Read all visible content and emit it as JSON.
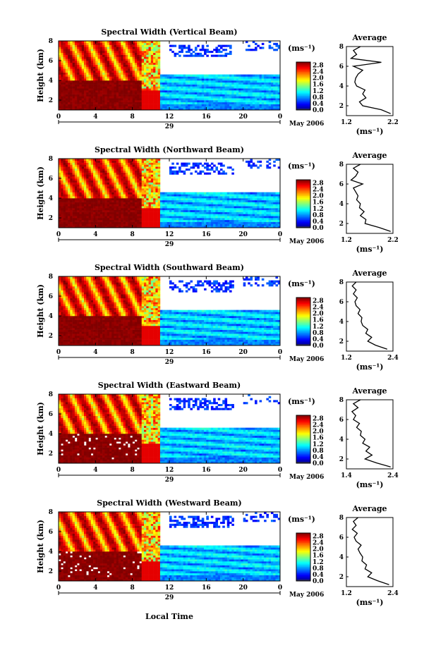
{
  "figure": {
    "x_axis_label": "Local Time",
    "colorbar_unit": "(ms⁻¹)",
    "date_label": "May 2006",
    "day_label": "29"
  },
  "chart_data": [
    {
      "type": "heatmap",
      "title": "Spectral Width (Vertical Beam)",
      "ylabel": "Height (km)",
      "xlabel": "",
      "x_ticks": [
        "0",
        "4",
        "8",
        "12",
        "16",
        "20",
        "0"
      ],
      "y_ticks": [
        "2",
        "4",
        "6",
        "8"
      ],
      "xlim": [
        0,
        24
      ],
      "ylim": [
        1,
        8
      ],
      "colorbar_ticks": [
        "0.0",
        "0.4",
        "0.8",
        "1.2",
        "1.6",
        "2.0",
        "2.4",
        "2.8"
      ],
      "colorbar_range": [
        0,
        3.0
      ],
      "profile": {
        "title": "Average",
        "xlabel": "(ms⁻¹)",
        "x_ticks": [
          "1.2",
          "2.2"
        ],
        "xlim": [
          1.2,
          2.2
        ],
        "y_ticks": [
          "2",
          "4",
          "6",
          "8"
        ],
        "ylim": [
          1,
          8
        ],
        "heights": [
          1.2,
          1.6,
          2.0,
          2.4,
          2.8,
          3.2,
          3.6,
          4.0,
          4.4,
          4.8,
          5.2,
          5.6,
          6.0,
          6.4,
          6.8,
          7.2,
          7.6,
          8.0
        ],
        "values": [
          2.15,
          1.95,
          1.55,
          1.48,
          1.62,
          1.55,
          1.6,
          1.42,
          1.38,
          1.4,
          1.45,
          1.55,
          1.35,
          1.95,
          1.3,
          1.42,
          1.35,
          1.5
        ]
      }
    },
    {
      "type": "heatmap",
      "title": "Spectral Width (Northward Beam)",
      "ylabel": "Height (km)",
      "xlabel": "",
      "x_ticks": [
        "0",
        "4",
        "8",
        "12",
        "16",
        "20",
        "0"
      ],
      "y_ticks": [
        "2",
        "4",
        "6",
        "8"
      ],
      "xlim": [
        0,
        24
      ],
      "ylim": [
        1,
        8
      ],
      "colorbar_ticks": [
        "0.0",
        "0.4",
        "0.8",
        "1.2",
        "1.6",
        "2.0",
        "2.4",
        "2.8"
      ],
      "colorbar_range": [
        0,
        3.0
      ],
      "profile": {
        "title": "Average",
        "xlabel": "(ms⁻¹)",
        "x_ticks": [
          "1.2",
          "2.2"
        ],
        "xlim": [
          1.2,
          2.2
        ],
        "y_ticks": [
          "2",
          "4",
          "6",
          "8"
        ],
        "ylim": [
          1,
          8
        ],
        "heights": [
          1.2,
          1.6,
          2.0,
          2.4,
          2.8,
          3.2,
          3.6,
          4.0,
          4.4,
          4.8,
          5.2,
          5.6,
          6.0,
          6.4,
          6.8,
          7.2,
          7.6,
          8.0
        ],
        "values": [
          2.15,
          1.9,
          1.6,
          1.62,
          1.5,
          1.58,
          1.48,
          1.5,
          1.42,
          1.45,
          1.4,
          1.35,
          1.55,
          1.3,
          1.4,
          1.45,
          1.35,
          1.5
        ]
      }
    },
    {
      "type": "heatmap",
      "title": "Spectral Width (Southward Beam)",
      "ylabel": "Height (km)",
      "xlabel": "",
      "x_ticks": [
        "0",
        "4",
        "8",
        "12",
        "16",
        "20",
        "0"
      ],
      "y_ticks": [
        "2",
        "4",
        "6",
        "8"
      ],
      "xlim": [
        0,
        24
      ],
      "ylim": [
        1,
        8
      ],
      "colorbar_ticks": [
        "0.0",
        "0.4",
        "0.8",
        "1.2",
        "1.6",
        "2.0",
        "2.4",
        "2.8"
      ],
      "colorbar_range": [
        0,
        3.0
      ],
      "profile": {
        "title": "Average",
        "xlabel": "(ms⁻¹)",
        "x_ticks": [
          "1.2",
          "2.4"
        ],
        "xlim": [
          1.2,
          2.4
        ],
        "y_ticks": [
          "2",
          "4",
          "6",
          "8"
        ],
        "ylim": [
          1,
          8
        ],
        "heights": [
          1.2,
          1.6,
          2.0,
          2.4,
          2.8,
          3.2,
          3.6,
          4.0,
          4.4,
          4.8,
          5.2,
          5.6,
          6.0,
          6.4,
          6.8,
          7.2,
          7.6,
          8.0
        ],
        "values": [
          2.25,
          1.95,
          1.75,
          1.85,
          1.7,
          1.75,
          1.62,
          1.58,
          1.6,
          1.5,
          1.55,
          1.45,
          1.42,
          1.48,
          1.38,
          1.45,
          1.35,
          1.45
        ]
      }
    },
    {
      "type": "heatmap",
      "title": "Spectral Width (Eastward Beam)",
      "ylabel": "Height (km)",
      "xlabel": "",
      "x_ticks": [
        "0",
        "4",
        "8",
        "12",
        "16",
        "20",
        "0"
      ],
      "y_ticks": [
        "2",
        "4",
        "6",
        "8"
      ],
      "xlim": [
        0,
        24
      ],
      "ylim": [
        1,
        8
      ],
      "colorbar_ticks": [
        "0.0",
        "0.4",
        "0.8",
        "1.2",
        "1.6",
        "2.0",
        "2.4",
        "2.8"
      ],
      "colorbar_range": [
        0,
        3.0
      ],
      "profile": {
        "title": "Average",
        "xlabel": "(ms⁻¹)",
        "x_ticks": [
          "1.4",
          "2.4"
        ],
        "xlim": [
          1.4,
          2.4
        ],
        "y_ticks": [
          "2",
          "4",
          "6",
          "8"
        ],
        "ylim": [
          1,
          8
        ],
        "heights": [
          1.2,
          1.6,
          2.0,
          2.4,
          2.8,
          3.2,
          3.6,
          4.0,
          4.4,
          4.8,
          5.2,
          5.6,
          6.0,
          6.4,
          6.8,
          7.2,
          7.6,
          8.0
        ],
        "values": [
          2.35,
          2.05,
          1.8,
          1.95,
          1.82,
          1.9,
          1.75,
          1.8,
          1.7,
          1.72,
          1.62,
          1.68,
          1.55,
          1.6,
          1.52,
          1.65,
          1.55,
          1.7
        ]
      }
    },
    {
      "type": "heatmap",
      "title": "Spectral Width (Westward Beam)",
      "ylabel": "Height (km)",
      "xlabel": "",
      "x_ticks": [
        "0",
        "4",
        "8",
        "12",
        "16",
        "20",
        "0"
      ],
      "y_ticks": [
        "2",
        "4",
        "6",
        "8"
      ],
      "xlim": [
        0,
        24
      ],
      "ylim": [
        1,
        8
      ],
      "colorbar_ticks": [
        "0.0",
        "0.4",
        "0.8",
        "1.2",
        "1.6",
        "2.0",
        "2.4",
        "2.8"
      ],
      "colorbar_range": [
        0,
        3.0
      ],
      "profile": {
        "title": "Average",
        "xlabel": "(ms⁻¹)",
        "x_ticks": [
          "1.2",
          "2.4"
        ],
        "xlim": [
          1.2,
          2.4
        ],
        "y_ticks": [
          "2",
          "4",
          "6",
          "8"
        ],
        "ylim": [
          1,
          8
        ],
        "heights": [
          1.2,
          1.6,
          2.0,
          2.4,
          2.8,
          3.2,
          3.6,
          4.0,
          4.4,
          4.8,
          5.2,
          5.6,
          6.0,
          6.4,
          6.8,
          7.2,
          7.6,
          8.0
        ],
        "values": [
          2.3,
          2.0,
          1.75,
          1.85,
          1.68,
          1.72,
          1.6,
          1.62,
          1.55,
          1.5,
          1.58,
          1.45,
          1.4,
          1.48,
          1.35,
          1.45,
          1.38,
          1.5
        ]
      }
    }
  ]
}
